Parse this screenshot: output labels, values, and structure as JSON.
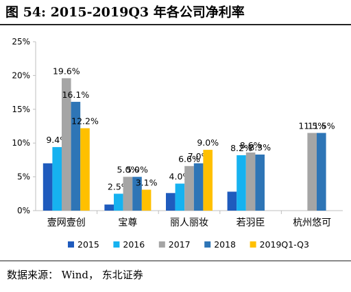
{
  "header": {
    "title": "图 54:  2015-2019Q3 年各公司净利率"
  },
  "footer": {
    "source": "数据来源： Wind， 东北证券"
  },
  "chart_data": {
    "type": "bar",
    "categories": [
      "壹网壹创",
      "宝尊",
      "丽人丽妆",
      "若羽臣",
      "杭州悠可"
    ],
    "series": [
      {
        "name": "2015",
        "color": "#1f5bbd",
        "values": [
          7.0,
          0.9,
          2.6,
          2.8,
          null
        ],
        "labels": [
          null,
          null,
          null,
          null,
          null
        ]
      },
      {
        "name": "2016",
        "color": "#16b2f0",
        "values": [
          9.4,
          2.5,
          4.0,
          8.2,
          null
        ],
        "labels": [
          "9.4%",
          "2.5%",
          "4.0%",
          "8.2%",
          null
        ]
      },
      {
        "name": "2017",
        "color": "#a5a5a5",
        "values": [
          19.6,
          5.0,
          6.6,
          8.6,
          11.5
        ],
        "labels": [
          "19.6%",
          "5.0%",
          "6.6%",
          "8.6%",
          "11.5%"
        ]
      },
      {
        "name": "2018",
        "color": "#2e75b6",
        "values": [
          16.1,
          5.0,
          7.0,
          8.3,
          11.5
        ],
        "labels": [
          "16.1%",
          "5.0%",
          "7.0%",
          "8.3%",
          "11.5%"
        ]
      },
      {
        "name": "2019Q1-Q3",
        "color": "#ffc000",
        "values": [
          12.2,
          3.1,
          9.0,
          null,
          null
        ],
        "labels": [
          "12.2%",
          "3.1%",
          "9.0%",
          null,
          null
        ]
      }
    ],
    "ylim": [
      0,
      25
    ],
    "yticks": [
      0,
      5,
      10,
      15,
      20,
      25
    ],
    "ytick_labels": [
      "0%",
      "5%",
      "10%",
      "15%",
      "20%",
      "25%"
    ],
    "grid": false,
    "legend_position": "bottom"
  }
}
